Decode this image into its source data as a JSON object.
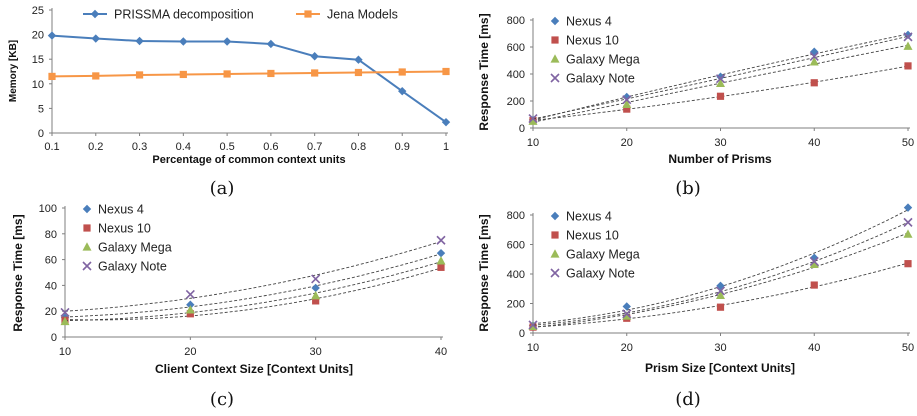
{
  "chart_data": [
    {
      "id": "a",
      "type": "line",
      "caption": "(a)",
      "xlabel": "Percentage of common context units",
      "ylabel": "Memory [KB]",
      "x": [
        0.1,
        0.2,
        0.3,
        0.4,
        0.5,
        0.6,
        0.7,
        0.8,
        0.9,
        1
      ],
      "x_tick_labels": [
        "0.1",
        "0.2",
        "0.3",
        "0.4",
        "0.5",
        "0.6",
        "0.7",
        "0.8",
        "0.9",
        "1"
      ],
      "ylim": [
        0,
        25
      ],
      "y_ticks": [
        0,
        5,
        10,
        15,
        20,
        25
      ],
      "legend_position": "top",
      "series": [
        {
          "name": "PRISSMA decomposition",
          "color": "#4a7ebb",
          "marker": "diamond",
          "values": [
            19.8,
            19.2,
            18.7,
            18.6,
            18.6,
            18.1,
            15.6,
            14.9,
            8.5,
            2.2
          ]
        },
        {
          "name": "Jena Models",
          "color": "#f79646",
          "marker": "square",
          "values": [
            11.5,
            11.6,
            11.8,
            11.9,
            12.0,
            12.1,
            12.2,
            12.3,
            12.4,
            12.5
          ]
        }
      ]
    },
    {
      "id": "b",
      "type": "scatter",
      "caption": "(b)",
      "xlabel": "Number of Prisms",
      "ylabel": "Response Time [ms]",
      "x": [
        10,
        20,
        30,
        40,
        50
      ],
      "xlim": [
        10,
        50
      ],
      "x_ticks": [
        10,
        20,
        30,
        40,
        50
      ],
      "ylim": [
        0,
        800
      ],
      "y_ticks": [
        0,
        200,
        400,
        600,
        800
      ],
      "legend_position": "top-left",
      "trendlines": "dashed",
      "series": [
        {
          "name": "Nexus 4",
          "color": "#4a7ebb",
          "marker": "diamond",
          "values": [
            60,
            230,
            380,
            565,
            690
          ]
        },
        {
          "name": "Nexus 10",
          "color": "#c0504d",
          "marker": "square",
          "values": [
            55,
            140,
            235,
            335,
            460
          ]
        },
        {
          "name": "Galaxy Mega",
          "color": "#9bbb59",
          "marker": "triangle",
          "values": [
            50,
            175,
            330,
            490,
            605
          ]
        },
        {
          "name": "Galaxy Note",
          "color": "#8064a2",
          "marker": "x",
          "values": [
            70,
            210,
            365,
            530,
            675
          ]
        }
      ]
    },
    {
      "id": "c",
      "type": "scatter",
      "caption": "(c)",
      "xlabel": "Client Context Size [Context Units]",
      "ylabel": "Response Time [ms]",
      "x": [
        10,
        20,
        30,
        40
      ],
      "xlim": [
        10,
        40
      ],
      "x_ticks": [
        10,
        20,
        30,
        40
      ],
      "ylim": [
        0,
        100
      ],
      "y_ticks": [
        0,
        20,
        40,
        60,
        80,
        100
      ],
      "legend_position": "top-left",
      "trendlines": "dashed",
      "series": [
        {
          "name": "Nexus 4",
          "color": "#4a7ebb",
          "marker": "diamond",
          "values": [
            15,
            25,
            38,
            65
          ]
        },
        {
          "name": "Nexus 10",
          "color": "#c0504d",
          "marker": "square",
          "values": [
            13,
            18,
            28,
            54
          ]
        },
        {
          "name": "Galaxy Mega",
          "color": "#9bbb59",
          "marker": "triangle",
          "values": [
            12,
            21,
            32,
            59
          ]
        },
        {
          "name": "Galaxy Note",
          "color": "#8064a2",
          "marker": "x",
          "values": [
            19,
            33,
            45,
            75
          ]
        }
      ]
    },
    {
      "id": "d",
      "type": "scatter",
      "caption": "(d)",
      "xlabel": "Prism Size [Context Units]",
      "ylabel": "Response Time [ms]",
      "x": [
        10,
        20,
        30,
        40,
        50
      ],
      "xlim": [
        10,
        50
      ],
      "x_ticks": [
        10,
        20,
        30,
        40,
        50
      ],
      "ylim": [
        0,
        800
      ],
      "y_ticks": [
        0,
        200,
        400,
        600,
        800
      ],
      "legend_position": "top-left",
      "trendlines": "dashed",
      "series": [
        {
          "name": "Nexus 4",
          "color": "#4a7ebb",
          "marker": "diamond",
          "values": [
            50,
            180,
            320,
            510,
            850
          ]
        },
        {
          "name": "Nexus 10",
          "color": "#c0504d",
          "marker": "square",
          "values": [
            40,
            100,
            175,
            325,
            470
          ]
        },
        {
          "name": "Galaxy Mega",
          "color": "#9bbb59",
          "marker": "triangle",
          "values": [
            45,
            115,
            255,
            465,
            670
          ]
        },
        {
          "name": "Galaxy Note",
          "color": "#8064a2",
          "marker": "x",
          "values": [
            55,
            130,
            285,
            485,
            750
          ]
        }
      ]
    }
  ]
}
